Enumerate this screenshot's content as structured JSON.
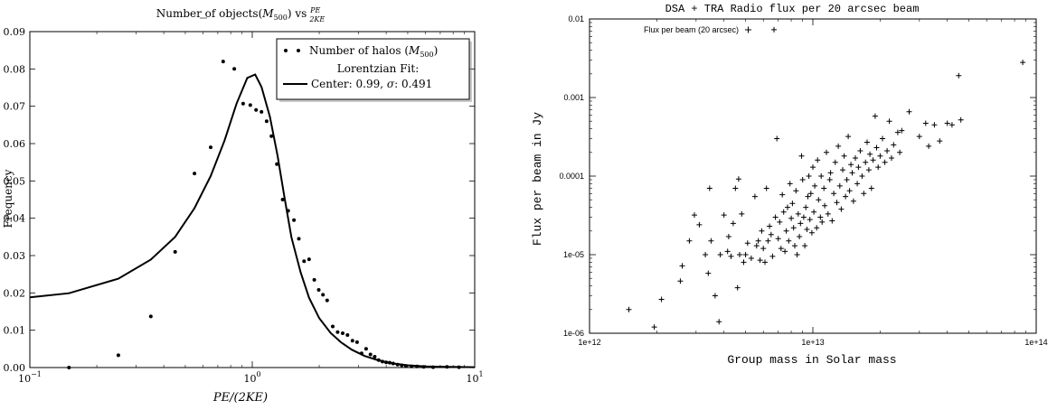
{
  "chart_data": [
    {
      "type": "scatter",
      "title": "Number of objects(M500) vs PE/2KE",
      "title_parts": {
        "prefix": "Number of objects(",
        "m": "M",
        "sub": "500",
        "mid": ") vs ",
        "num": "PE",
        "den": "2KE"
      },
      "xlabel": "PE/(2KE)",
      "ylabel": "Frequency",
      "x_scale": "log",
      "xlim": [
        0.1,
        10
      ],
      "ylim": [
        0.0,
        0.09
      ],
      "x_ticks": [
        0.1,
        1,
        10
      ],
      "x_tick_labels": {
        "base": "10",
        "exps": [
          "−1",
          "0",
          "1"
        ]
      },
      "y_ticks": [
        "0.00",
        "0.01",
        "0.02",
        "0.03",
        "0.04",
        "0.05",
        "0.06",
        "0.07",
        "0.08",
        "0.09"
      ],
      "legend_position": "top-right",
      "legend": {
        "points_label_prefix": "Number of halos (",
        "points_label_m": "M",
        "points_label_sub": "500",
        "points_label_suffix": ")",
        "fit_title": "Lorentzian Fit:",
        "fit_label_prefix": "Center: 0.99, ",
        "fit_label_sigma": "σ",
        "fit_label_suffix": ": 0.491"
      },
      "series": [
        {
          "name": "Number of halos (M500)",
          "kind": "points",
          "points": [
            [
              0.15,
              0.0
            ],
            [
              0.25,
              0.0033
            ],
            [
              0.35,
              0.0137
            ],
            [
              0.45,
              0.031
            ],
            [
              0.55,
              0.052
            ],
            [
              0.65,
              0.059
            ],
            [
              0.74,
              0.082
            ],
            [
              0.83,
              0.08
            ],
            [
              0.91,
              0.0707
            ],
            [
              0.98,
              0.0703
            ],
            [
              1.04,
              0.069
            ],
            [
              1.1,
              0.0685
            ],
            [
              1.16,
              0.066
            ],
            [
              1.22,
              0.062
            ],
            [
              1.29,
              0.0545
            ],
            [
              1.37,
              0.045
            ],
            [
              1.45,
              0.042
            ],
            [
              1.54,
              0.0395
            ],
            [
              1.62,
              0.0345
            ],
            [
              1.71,
              0.0285
            ],
            [
              1.8,
              0.029
            ],
            [
              1.9,
              0.0235
            ],
            [
              1.99,
              0.0208
            ],
            [
              2.08,
              0.0195
            ],
            [
              2.17,
              0.018
            ],
            [
              2.3,
              0.011
            ],
            [
              2.42,
              0.0095
            ],
            [
              2.55,
              0.0092
            ],
            [
              2.68,
              0.0087
            ],
            [
              2.82,
              0.0072
            ],
            [
              2.96,
              0.0068
            ],
            [
              3.1,
              0.0038
            ],
            [
              3.25,
              0.005
            ],
            [
              3.4,
              0.0035
            ],
            [
              3.55,
              0.0029
            ],
            [
              3.7,
              0.002
            ],
            [
              3.85,
              0.0016
            ],
            [
              4.0,
              0.0014
            ],
            [
              4.15,
              0.0013
            ],
            [
              4.3,
              0.0011
            ],
            [
              4.5,
              0.0008
            ],
            [
              4.7,
              0.0006
            ],
            [
              4.9,
              0.0004
            ],
            [
              5.2,
              0.0003
            ],
            [
              5.5,
              0.0003
            ],
            [
              5.9,
              0.0002
            ],
            [
              6.5,
              0.0001
            ],
            [
              7.5,
              0.0002
            ],
            [
              8.5,
              0.0001
            ]
          ]
        },
        {
          "name": "Lorentzian Fit",
          "kind": "line",
          "points": [
            [
              0.1,
              0.0188
            ],
            [
              0.15,
              0.0199
            ],
            [
              0.25,
              0.0238
            ],
            [
              0.35,
              0.0289
            ],
            [
              0.45,
              0.035
            ],
            [
              0.55,
              0.0427
            ],
            [
              0.65,
              0.0513
            ],
            [
              0.75,
              0.0608
            ],
            [
              0.85,
              0.0707
            ],
            [
              0.95,
              0.0776
            ],
            [
              1.03,
              0.0785
            ],
            [
              1.1,
              0.0752
            ],
            [
              1.2,
              0.0672
            ],
            [
              1.3,
              0.0567
            ],
            [
              1.4,
              0.0452
            ],
            [
              1.5,
              0.0349
            ],
            [
              1.65,
              0.0255
            ],
            [
              1.8,
              0.0187
            ],
            [
              2.0,
              0.0132
            ],
            [
              2.25,
              0.0093
            ],
            [
              2.5,
              0.0068
            ],
            [
              2.8,
              0.0048
            ],
            [
              3.2,
              0.0031
            ],
            [
              3.7,
              0.0019
            ],
            [
              4.3,
              0.0011
            ],
            [
              5.0,
              0.0006
            ],
            [
              6.0,
              0.0003
            ],
            [
              7.5,
              0.0002
            ],
            [
              10.0,
              0.0001
            ]
          ]
        }
      ]
    },
    {
      "type": "scatter",
      "title": "DSA + TRA Radio flux per 20 arcsec beam",
      "xlabel": "Group mass in Solar mass",
      "ylabel": "Flux per beam in Jy",
      "x_scale": "log",
      "y_scale": "log",
      "xlim": [
        1000000000000.0,
        100000000000000.0
      ],
      "ylim": [
        1e-06,
        0.01
      ],
      "x_ticks": [
        1000000000000.0,
        10000000000000.0,
        100000000000000.0
      ],
      "x_tick_labels": [
        "1e+12",
        "1e+13",
        "1e+14"
      ],
      "y_ticks": [
        1e-06,
        1e-05,
        0.0001,
        0.001,
        0.01
      ],
      "y_tick_labels": [
        "1e-06",
        "1e-05",
        "0.0001",
        "0.001",
        "0.01"
      ],
      "legend_position": "top-left",
      "legend": {
        "label": "Flux per beam (20 arcsec)"
      },
      "series": [
        {
          "name": "Flux per beam (20 arcsec)",
          "marker": "+",
          "points": [
            [
              1500000000000.0,
              2e-06
            ],
            [
              1950000000000.0,
              1.2e-06
            ],
            [
              2100000000000.0,
              2.7e-06
            ],
            [
              2550000000000.0,
              4.6e-06
            ],
            [
              2600000000000.0,
              7.2e-06
            ],
            [
              2800000000000.0,
              1.5e-05
            ],
            [
              2950000000000.0,
              3.2e-05
            ],
            [
              3100000000000.0,
              2.4e-05
            ],
            [
              3300000000000.0,
              1e-05
            ],
            [
              3400000000000.0,
              5.8e-06
            ],
            [
              3450000000000.0,
              7e-05
            ],
            [
              3500000000000.0,
              1.5e-05
            ],
            [
              3650000000000.0,
              3e-06
            ],
            [
              3800000000000.0,
              1.4e-06
            ],
            [
              3850000000000.0,
              1e-05
            ],
            [
              4000000000000.0,
              3.2e-05
            ],
            [
              4150000000000.0,
              1.1e-05
            ],
            [
              4200000000000.0,
              1.7e-05
            ],
            [
              4300000000000.0,
              9.5e-06
            ],
            [
              4400000000000.0,
              2.5e-05
            ],
            [
              4500000000000.0,
              7e-05
            ],
            [
              4600000000000.0,
              3.8e-06
            ],
            [
              4650000000000.0,
              9.2e-05
            ],
            [
              4700000000000.0,
              1e-05
            ],
            [
              4800000000000.0,
              3.3e-05
            ],
            [
              4900000000000.0,
              8e-06
            ],
            [
              5000000000000.0,
              1e-05
            ],
            [
              5100000000000.0,
              1.4e-05
            ],
            [
              5300000000000.0,
              9e-06
            ],
            [
              5500000000000.0,
              5.5e-05
            ],
            [
              5600000000000.0,
              1.3e-05
            ],
            [
              5700000000000.0,
              1.5e-05
            ],
            [
              5800000000000.0,
              8.5e-06
            ],
            [
              5900000000000.0,
              2e-05
            ],
            [
              6000000000000.0,
              1.2e-05
            ],
            [
              6100000000000.0,
              8e-06
            ],
            [
              6200000000000.0,
              7e-05
            ],
            [
              6300000000000.0,
              1.5e-05
            ],
            [
              6400000000000.0,
              2.3e-05
            ],
            [
              6500000000000.0,
              1.8e-05
            ],
            [
              6600000000000.0,
              9.5e-06
            ],
            [
              6700000000000.0,
              0.0073
            ],
            [
              6800000000000.0,
              3e-05
            ],
            [
              6900000000000.0,
              0.0003
            ],
            [
              7000000000000.0,
              1.6e-05
            ],
            [
              7100000000000.0,
              2.6e-05
            ],
            [
              7200000000000.0,
              1.2e-05
            ],
            [
              7300000000000.0,
              5.8e-05
            ],
            [
              7400000000000.0,
              3.5e-05
            ],
            [
              7500000000000.0,
              1.1e-05
            ],
            [
              7600000000000.0,
              2e-05
            ],
            [
              7700000000000.0,
              4e-05
            ],
            [
              7800000000000.0,
              1.5e-05
            ],
            [
              7900000000000.0,
              8e-05
            ],
            [
              8000000000000.0,
              2.9e-05
            ],
            [
              8100000000000.0,
              4.5e-05
            ],
            [
              8200000000000.0,
              2.2e-05
            ],
            [
              8300000000000.0,
              1.3e-05
            ],
            [
              8400000000000.0,
              6.5e-05
            ],
            [
              8500000000000.0,
              1e-05
            ],
            [
              8600000000000.0,
              3.3e-05
            ],
            [
              8700000000000.0,
              1.7e-05
            ],
            [
              8800000000000.0,
              2.5e-05
            ],
            [
              8900000000000.0,
              0.00018
            ],
            [
              9000000000000.0,
              9e-05
            ],
            [
              9100000000000.0,
              3e-05
            ],
            [
              9200000000000.0,
              1.3e-05
            ],
            [
              9300000000000.0,
              4e-05
            ],
            [
              9400000000000.0,
              2.1e-05
            ],
            [
              9500000000000.0,
              5.5e-05
            ],
            [
              9600000000000.0,
              0.0001
            ],
            [
              9700000000000.0,
              2.8e-05
            ],
            [
              9800000000000.0,
              6e-05
            ],
            [
              9900000000000.0,
              1.9e-05
            ],
            [
              10000000000000.0,
              0.00013
            ],
            [
              10100000000000.0,
              3.5e-05
            ],
            [
              10200000000000.0,
              7.5e-05
            ],
            [
              10400000000000.0,
              2.2e-05
            ],
            [
              10500000000000.0,
              0.00016
            ],
            [
              10600000000000.0,
              5e-05
            ],
            [
              10800000000000.0,
              3e-05
            ],
            [
              10900000000000.0,
              0.0001
            ],
            [
              11000000000000.0,
              2.6e-05
            ],
            [
              11200000000000.0,
              7e-05
            ],
            [
              11300000000000.0,
              4.2e-05
            ],
            [
              11500000000000.0,
              0.0002
            ],
            [
              11700000000000.0,
              3.3e-05
            ],
            [
              11900000000000.0,
              9e-05
            ],
            [
              12000000000000.0,
              0.00011
            ],
            [
              12200000000000.0,
              2.7e-05
            ],
            [
              12400000000000.0,
              6e-05
            ],
            [
              12600000000000.0,
              0.00015
            ],
            [
              12800000000000.0,
              4.6e-05
            ],
            [
              13000000000000.0,
              0.00024
            ],
            [
              13200000000000.0,
              7.5e-05
            ],
            [
              13400000000000.0,
              3.8e-05
            ],
            [
              13600000000000.0,
              0.00012
            ],
            [
              13800000000000.0,
              0.00018
            ],
            [
              14000000000000.0,
              5.5e-05
            ],
            [
              14200000000000.0,
              9e-05
            ],
            [
              14400000000000.0,
              0.00032
            ],
            [
              14600000000000.0,
              6.5e-05
            ],
            [
              14800000000000.0,
              0.00014
            ],
            [
              15000000000000.0,
              0.00011
            ],
            [
              15200000000000.0,
              4.8e-05
            ],
            [
              15500000000000.0,
              0.00017
            ],
            [
              15800000000000.0,
              8e-05
            ],
            [
              16000000000000.0,
              0.00013
            ],
            [
              16300000000000.0,
              0.00021
            ],
            [
              16600000000000.0,
              0.0001
            ],
            [
              16900000000000.0,
              6e-05
            ],
            [
              17200000000000.0,
              0.00015
            ],
            [
              17500000000000.0,
              0.00027
            ],
            [
              17800000000000.0,
              0.00012
            ],
            [
              18000000000000.0,
              0.00019
            ],
            [
              18300000000000.0,
              7e-05
            ],
            [
              18600000000000.0,
              0.00016
            ],
            [
              19000000000000.0,
              0.00058
            ],
            [
              19300000000000.0,
              0.00023
            ],
            [
              19600000000000.0,
              0.00013
            ],
            [
              20000000000000.0,
              0.00018
            ],
            [
              20500000000000.0,
              0.0003
            ],
            [
              21000000000000.0,
              0.00015
            ],
            [
              21500000000000.0,
              0.00021
            ],
            [
              22000000000000.0,
              0.0005
            ],
            [
              22500000000000.0,
              0.00017
            ],
            [
              23000000000000.0,
              0.00025
            ],
            [
              24000000000000.0,
              0.00036
            ],
            [
              24500000000000.0,
              0.0002
            ],
            [
              25000000000000.0,
              0.00038
            ],
            [
              27000000000000.0,
              0.00066
            ],
            [
              30000000000000.0,
              0.00032
            ],
            [
              32000000000000.0,
              0.00047
            ],
            [
              33000000000000.0,
              0.00024
            ],
            [
              35000000000000.0,
              0.00045
            ],
            [
              37000000000000.0,
              0.00028
            ],
            [
              40000000000000.0,
              0.00047
            ],
            [
              42000000000000.0,
              0.00045
            ],
            [
              45000000000000.0,
              0.0019
            ],
            [
              46000000000000.0,
              0.00052
            ],
            [
              87000000000000.0,
              0.0028
            ]
          ]
        }
      ]
    }
  ]
}
